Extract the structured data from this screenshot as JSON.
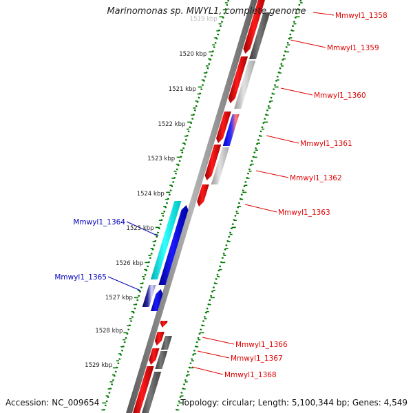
{
  "title": "Marinomonas sp. MWYL1, complete genome",
  "accession": "Accession: NC_009654",
  "summary": "Topology: circular; Length: 5,100,344 bp; Genes: 4,549",
  "colors": {
    "reverse_gene": "#ee0000",
    "forward_gene": "#0000ee",
    "cyan_feature": "#00eeee",
    "dark_gray": "#666666",
    "light_gray": "#c0c0c0",
    "backbone": "#8a8a8a",
    "tick": "#007700",
    "reverse_label": "#dd0000",
    "forward_label": "#0000bb"
  },
  "ruler": [
    {
      "label": "1519 kbp"
    },
    {
      "label": "1520 kbp"
    },
    {
      "label": "1521 kbp"
    },
    {
      "label": "1522 kbp"
    },
    {
      "label": "1523 kbp"
    },
    {
      "label": "1524 kbp"
    },
    {
      "label": "1525 kbp"
    },
    {
      "label": "1526 kbp"
    },
    {
      "label": "1527 kbp"
    },
    {
      "label": "1528 kbp"
    },
    {
      "label": "1529 kbp"
    }
  ],
  "genes": [
    {
      "label": "Mmwyl1_1358",
      "strand": "reverse"
    },
    {
      "label": "Mmwyl1_1359",
      "strand": "reverse"
    },
    {
      "label": "Mmwyl1_1360",
      "strand": "reverse"
    },
    {
      "label": "Mmwyl1_1361",
      "strand": "reverse"
    },
    {
      "label": "Mmwyl1_1362",
      "strand": "reverse"
    },
    {
      "label": "Mmwyl1_1363",
      "strand": "reverse"
    },
    {
      "label": "Mmwyl1_1364",
      "strand": "forward"
    },
    {
      "label": "Mmwyl1_1365",
      "strand": "forward"
    },
    {
      "label": "Mmwyl1_1366",
      "strand": "reverse"
    },
    {
      "label": "Mmwyl1_1367",
      "strand": "reverse"
    },
    {
      "label": "Mmwyl1_1368",
      "strand": "reverse"
    }
  ]
}
